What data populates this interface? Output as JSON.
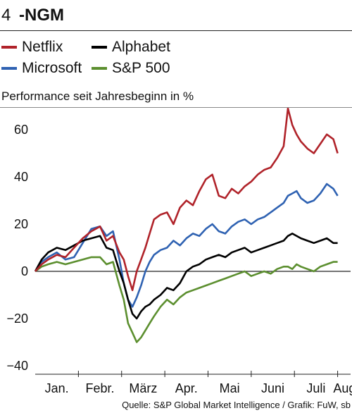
{
  "header": {
    "number": "4",
    "title": "-NGM"
  },
  "legend": [
    {
      "name": "Netflix",
      "color": "#b0232a"
    },
    {
      "name": "Alphabet",
      "color": "#000000"
    },
    {
      "name": "Microsoft",
      "color": "#2f62b2"
    },
    {
      "name": "S&P 500",
      "color": "#5c8f2f"
    }
  ],
  "subtitle": "Performance seit Jahresbeginn in %",
  "source": "Quelle: S&P Global Market Intelligence / Grafik: FuW, sb",
  "chart_data": {
    "type": "line",
    "title": "",
    "xlabel": "",
    "ylabel": "Performance seit Jahresbeginn in %",
    "ylim": [
      -40,
      70
    ],
    "yticks": [
      60,
      40,
      20,
      0,
      -20,
      -40
    ],
    "xlim": [
      0,
      7.3
    ],
    "xticks": [
      "Jan.",
      "Febr.",
      "März",
      "Apr.",
      "Mai",
      "Juni",
      "Juli",
      "Aug."
    ],
    "xtick_positions": [
      0.5,
      1.5,
      2.5,
      3.5,
      4.5,
      5.5,
      6.5,
      7.2
    ],
    "zero_line": true,
    "grid": false,
    "legend_position": "top",
    "series": [
      {
        "name": "Netflix",
        "color": "#b0232a",
        "x": [
          0,
          0.15,
          0.3,
          0.5,
          0.7,
          0.9,
          1.1,
          1.3,
          1.5,
          1.65,
          1.8,
          1.95,
          2.05,
          2.15,
          2.25,
          2.35,
          2.45,
          2.55,
          2.65,
          2.75,
          2.9,
          3.05,
          3.2,
          3.35,
          3.5,
          3.65,
          3.8,
          3.95,
          4.1,
          4.25,
          4.4,
          4.55,
          4.7,
          4.85,
          5.0,
          5.15,
          5.3,
          5.45,
          5.6,
          5.75,
          5.85,
          5.95,
          6.05,
          6.15,
          6.3,
          6.45,
          6.6,
          6.75,
          6.9,
          7.0
        ],
        "values": [
          0,
          3,
          5,
          7,
          6,
          10,
          14,
          17,
          19,
          13,
          15,
          8,
          5,
          -2,
          -8,
          0,
          5,
          10,
          16,
          22,
          24,
          25,
          20,
          27,
          30,
          28,
          34,
          39,
          41,
          32,
          31,
          35,
          33,
          36,
          38,
          41,
          43,
          44,
          48,
          53,
          69,
          62,
          58,
          55,
          52,
          50,
          54,
          58,
          56,
          50
        ]
      },
      {
        "name": "Alphabet",
        "color": "#000000",
        "x": [
          0,
          0.15,
          0.3,
          0.5,
          0.7,
          0.9,
          1.1,
          1.3,
          1.5,
          1.65,
          1.8,
          1.95,
          2.05,
          2.15,
          2.25,
          2.35,
          2.45,
          2.55,
          2.65,
          2.75,
          2.9,
          3.05,
          3.2,
          3.35,
          3.5,
          3.65,
          3.8,
          3.95,
          4.1,
          4.25,
          4.4,
          4.55,
          4.7,
          4.85,
          5.0,
          5.15,
          5.3,
          5.45,
          5.6,
          5.75,
          5.85,
          5.95,
          6.05,
          6.15,
          6.3,
          6.45,
          6.6,
          6.75,
          6.9,
          7.0
        ],
        "values": [
          0,
          5,
          8,
          10,
          9,
          11,
          13,
          14,
          15,
          10,
          9,
          0,
          -5,
          -12,
          -18,
          -20,
          -17,
          -15,
          -14,
          -12,
          -10,
          -7,
          -8,
          -5,
          0,
          2,
          3,
          5,
          6,
          7,
          6,
          8,
          9,
          10,
          8,
          9,
          10,
          11,
          12,
          13,
          15,
          16,
          15,
          14,
          13,
          12,
          13,
          14,
          12,
          12
        ]
      },
      {
        "name": "Microsoft",
        "color": "#2f62b2",
        "x": [
          0,
          0.15,
          0.3,
          0.5,
          0.7,
          0.9,
          1.1,
          1.3,
          1.5,
          1.65,
          1.8,
          1.95,
          2.05,
          2.15,
          2.25,
          2.35,
          2.45,
          2.55,
          2.65,
          2.75,
          2.9,
          3.05,
          3.2,
          3.35,
          3.5,
          3.65,
          3.8,
          3.95,
          4.1,
          4.25,
          4.4,
          4.55,
          4.7,
          4.85,
          5.0,
          5.15,
          5.3,
          5.45,
          5.6,
          5.75,
          5.85,
          5.95,
          6.05,
          6.15,
          6.3,
          6.45,
          6.6,
          6.75,
          6.9,
          7.0
        ],
        "values": [
          0,
          4,
          6,
          8,
          5,
          6,
          12,
          18,
          19,
          15,
          17,
          5,
          -5,
          -12,
          -15,
          -11,
          -6,
          0,
          4,
          7,
          9,
          10,
          13,
          11,
          14,
          16,
          15,
          18,
          20,
          17,
          16,
          19,
          21,
          22,
          20,
          22,
          23,
          25,
          27,
          29,
          32,
          33,
          34,
          31,
          29,
          30,
          33,
          37,
          35,
          32
        ]
      },
      {
        "name": "S&P 500",
        "color": "#5c8f2f",
        "x": [
          0,
          0.15,
          0.3,
          0.5,
          0.7,
          0.9,
          1.1,
          1.3,
          1.5,
          1.65,
          1.8,
          1.95,
          2.05,
          2.15,
          2.25,
          2.35,
          2.45,
          2.55,
          2.65,
          2.75,
          2.9,
          3.05,
          3.2,
          3.35,
          3.5,
          3.65,
          3.8,
          3.95,
          4.1,
          4.25,
          4.4,
          4.55,
          4.7,
          4.85,
          5.0,
          5.15,
          5.3,
          5.45,
          5.6,
          5.75,
          5.85,
          5.95,
          6.05,
          6.15,
          6.3,
          6.45,
          6.6,
          6.75,
          6.9,
          7.0
        ],
        "values": [
          0,
          2,
          3,
          4,
          3,
          4,
          5,
          6,
          6,
          3,
          4,
          -6,
          -12,
          -22,
          -26,
          -30,
          -28,
          -25,
          -22,
          -19,
          -15,
          -12,
          -14,
          -11,
          -9,
          -8,
          -7,
          -6,
          -5,
          -4,
          -3,
          -2,
          -1,
          0,
          -2,
          -1,
          0,
          -1,
          1,
          2,
          2,
          1,
          3,
          2,
          1,
          0,
          2,
          3,
          4,
          4
        ]
      }
    ]
  }
}
